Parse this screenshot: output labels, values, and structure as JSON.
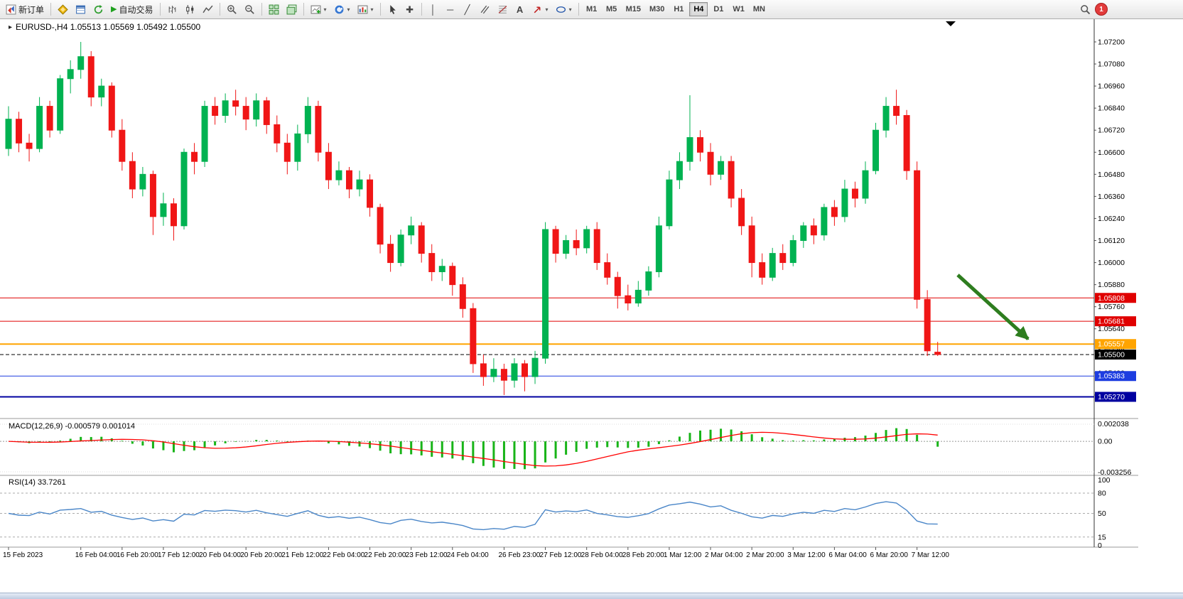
{
  "icons": {
    "play": "▶",
    "dropdown": "▾",
    "crosshair": "✚",
    "vertical_line": "│",
    "horizontal_line": "─",
    "trendline": "╱",
    "text_tool": "A",
    "one_click_marker": "▸"
  },
  "toolbar": {
    "new_order_label": "新订单",
    "autotrading_label": "自动交易",
    "timeframes": [
      "M1",
      "M5",
      "M15",
      "M30",
      "H1",
      "H4",
      "D1",
      "W1",
      "MN"
    ],
    "active_timeframe": "H4",
    "notification_count": "1"
  },
  "chart": {
    "header": "EURUSD-,H4  1.05513 1.05569 1.05492 1.05500",
    "y_axis_labels": [
      "1.07200",
      "1.07080",
      "1.06960",
      "1.06840",
      "1.06720",
      "1.06600",
      "1.06480",
      "1.06360",
      "1.06240",
      "1.06120",
      "1.06000",
      "1.05880",
      "1.05760",
      "1.05640",
      "1.05520",
      "1.05400",
      "1.05280"
    ],
    "h_lines": [
      {
        "label": "1.05808",
        "price": 1.05808,
        "color": "#e00000",
        "width": 1,
        "dash": false
      },
      {
        "label": "1.05681",
        "price": 1.05681,
        "color": "#e00000",
        "width": 1,
        "dash": false
      },
      {
        "label": "1.05557",
        "price": 1.05557,
        "color": "#ffa400",
        "width": 2,
        "dash": false
      },
      {
        "label": "1.05500",
        "price": 1.055,
        "color": "#000000",
        "width": 1,
        "dash": true
      },
      {
        "label": "1.05383",
        "price": 1.05383,
        "color": "#1d3de0",
        "width": 1,
        "dash": false
      },
      {
        "label": "1.05270",
        "price": 1.0527,
        "color": "#0000a0",
        "width": 2,
        "dash": false
      }
    ],
    "arrow_color": "#2e7d1f",
    "colors": {
      "bull": "#00b251",
      "bear": "#f01616",
      "macd_bar": "#18b418",
      "macd_signal": "#ff0000",
      "rsi_line": "#4a86c8"
    }
  },
  "macd": {
    "label": "MACD(12,26,9) -0.000579 0.001014",
    "axis_labels": [
      "0.002038",
      "0.00",
      "-0.003256"
    ]
  },
  "rsi": {
    "label": "RSI(14) 33.7261",
    "axis_labels": [
      "100",
      "80",
      "50",
      "15",
      "0"
    ],
    "levels": [
      80,
      50,
      15
    ]
  },
  "chart_data": {
    "type": "candlestick",
    "symbol": "EURUSD-",
    "period": "H4",
    "current_bar": {
      "open": 1.05513,
      "high": 1.05569,
      "low": 1.05492,
      "close": 1.055
    },
    "y_range_labels": {
      "top": "1.07200",
      "bottom": "1.05280",
      "step": 0.0012
    },
    "candles": [
      [
        1.0662,
        1.0685,
        1.0658,
        1.0678
      ],
      [
        1.0678,
        1.0682,
        1.066,
        1.0665
      ],
      [
        1.0665,
        1.067,
        1.0655,
        1.0662
      ],
      [
        1.0662,
        1.069,
        1.066,
        1.0685
      ],
      [
        1.0685,
        1.0688,
        1.0668,
        1.0672
      ],
      [
        1.0672,
        1.0702,
        1.067,
        1.07
      ],
      [
        1.07,
        1.071,
        1.0692,
        1.0705
      ],
      [
        1.0705,
        1.072,
        1.07,
        1.0712
      ],
      [
        1.0712,
        1.0715,
        1.0685,
        1.069
      ],
      [
        1.069,
        1.07,
        1.0685,
        1.0696
      ],
      [
        1.0696,
        1.0698,
        1.0668,
        1.0672
      ],
      [
        1.0672,
        1.0678,
        1.065,
        1.0655
      ],
      [
        1.0655,
        1.066,
        1.0635,
        1.064
      ],
      [
        1.064,
        1.0652,
        1.0636,
        1.0648
      ],
      [
        1.0648,
        1.065,
        1.0615,
        1.0625
      ],
      [
        1.0625,
        1.0638,
        1.062,
        1.0632
      ],
      [
        1.0632,
        1.0635,
        1.0612,
        1.062
      ],
      [
        1.062,
        1.0662,
        1.0618,
        1.066
      ],
      [
        1.066,
        1.0665,
        1.0648,
        1.0655
      ],
      [
        1.0655,
        1.0688,
        1.0652,
        1.0685
      ],
      [
        1.0685,
        1.069,
        1.0675,
        1.068
      ],
      [
        1.068,
        1.0692,
        1.0676,
        1.0688
      ],
      [
        1.0688,
        1.0694,
        1.068,
        1.0685
      ],
      [
        1.0685,
        1.069,
        1.0672,
        1.0678
      ],
      [
        1.0678,
        1.0692,
        1.0674,
        1.0688
      ],
      [
        1.0688,
        1.069,
        1.067,
        1.0675
      ],
      [
        1.0675,
        1.068,
        1.066,
        1.0665
      ],
      [
        1.0665,
        1.067,
        1.0648,
        1.0655
      ],
      [
        1.0655,
        1.0675,
        1.065,
        1.067
      ],
      [
        1.067,
        1.069,
        1.0665,
        1.0685
      ],
      [
        1.0685,
        1.0688,
        1.0655,
        1.066
      ],
      [
        1.066,
        1.0665,
        1.064,
        1.0645
      ],
      [
        1.0645,
        1.0655,
        1.0642,
        1.065
      ],
      [
        1.065,
        1.0652,
        1.0635,
        1.064
      ],
      [
        1.064,
        1.065,
        1.0636,
        1.0645
      ],
      [
        1.0645,
        1.0648,
        1.0625,
        1.063
      ],
      [
        1.063,
        1.0632,
        1.0605,
        1.061
      ],
      [
        1.061,
        1.0615,
        1.0595,
        1.06
      ],
      [
        1.06,
        1.0618,
        1.0598,
        1.0615
      ],
      [
        1.0615,
        1.0625,
        1.061,
        1.062
      ],
      [
        1.062,
        1.0622,
        1.06,
        1.0605
      ],
      [
        1.0605,
        1.061,
        1.059,
        1.0595
      ],
      [
        1.0595,
        1.0602,
        1.059,
        1.0598
      ],
      [
        1.0598,
        1.06,
        1.0582,
        1.0588
      ],
      [
        1.0588,
        1.0592,
        1.057,
        1.0575
      ],
      [
        1.0575,
        1.0578,
        1.054,
        1.0545
      ],
      [
        1.0545,
        1.055,
        1.0533,
        1.0538
      ],
      [
        1.0538,
        1.0548,
        1.0535,
        1.0542
      ],
      [
        1.0542,
        1.0545,
        1.0528,
        1.0536
      ],
      [
        1.0536,
        1.0548,
        1.0532,
        1.0545
      ],
      [
        1.0545,
        1.0547,
        1.053,
        1.0538
      ],
      [
        1.0538,
        1.0552,
        1.0534,
        1.0548
      ],
      [
        1.0548,
        1.0622,
        1.0545,
        1.0618
      ],
      [
        1.0618,
        1.062,
        1.06,
        1.0605
      ],
      [
        1.0605,
        1.0615,
        1.0602,
        1.0612
      ],
      [
        1.0612,
        1.0618,
        1.0604,
        1.0608
      ],
      [
        1.0608,
        1.062,
        1.0605,
        1.0618
      ],
      [
        1.0618,
        1.0622,
        1.0596,
        1.06
      ],
      [
        1.06,
        1.0605,
        1.0588,
        1.0592
      ],
      [
        1.0592,
        1.0595,
        1.0575,
        1.0582
      ],
      [
        1.0582,
        1.0588,
        1.0574,
        1.0578
      ],
      [
        1.0578,
        1.059,
        1.0576,
        1.0585
      ],
      [
        1.0585,
        1.0598,
        1.0582,
        1.0595
      ],
      [
        1.0595,
        1.0625,
        1.0592,
        1.062
      ],
      [
        1.062,
        1.065,
        1.0618,
        1.0645
      ],
      [
        1.0645,
        1.066,
        1.064,
        1.0655
      ],
      [
        1.0655,
        1.0691,
        1.065,
        1.0668
      ],
      [
        1.0668,
        1.0672,
        1.0655,
        1.066
      ],
      [
        1.066,
        1.0665,
        1.0642,
        1.0648
      ],
      [
        1.0648,
        1.0658,
        1.0645,
        1.0655
      ],
      [
        1.0655,
        1.0658,
        1.063,
        1.0635
      ],
      [
        1.0635,
        1.064,
        1.0615,
        1.062
      ],
      [
        1.062,
        1.0625,
        1.0592,
        1.06
      ],
      [
        1.06,
        1.0605,
        1.0588,
        1.0592
      ],
      [
        1.0592,
        1.0608,
        1.059,
        1.0605
      ],
      [
        1.0605,
        1.061,
        1.0596,
        1.06
      ],
      [
        1.06,
        1.0615,
        1.0598,
        1.0612
      ],
      [
        1.0612,
        1.0622,
        1.0608,
        1.062
      ],
      [
        1.062,
        1.0624,
        1.061,
        1.0615
      ],
      [
        1.0615,
        1.0632,
        1.0612,
        1.063
      ],
      [
        1.063,
        1.0634,
        1.062,
        1.0625
      ],
      [
        1.0625,
        1.0645,
        1.0622,
        1.064
      ],
      [
        1.064,
        1.0644,
        1.063,
        1.0635
      ],
      [
        1.0635,
        1.0655,
        1.0632,
        1.065
      ],
      [
        1.065,
        1.0676,
        1.0648,
        1.0672
      ],
      [
        1.0672,
        1.069,
        1.0668,
        1.0685
      ],
      [
        1.0685,
        1.0694,
        1.0675,
        1.068
      ],
      [
        1.068,
        1.0683,
        1.0645,
        1.065
      ],
      [
        1.065,
        1.0655,
        1.0575,
        1.058
      ],
      [
        1.058,
        1.0585,
        1.05492,
        1.0552
      ],
      [
        1.05513,
        1.05569,
        1.05492,
        1.055
      ]
    ],
    "x_labels": [
      [
        0,
        "15 Feb 2023"
      ],
      [
        7,
        "16 Feb 04:00"
      ],
      [
        11,
        "16 Feb 20:00"
      ],
      [
        15,
        "17 Feb 12:00"
      ],
      [
        19,
        "20 Feb 04:00"
      ],
      [
        23,
        "20 Feb 20:00"
      ],
      [
        27,
        "21 Feb 12:00"
      ],
      [
        31,
        "22 Feb 04:00"
      ],
      [
        35,
        "22 Feb 20:00"
      ],
      [
        39,
        "23 Feb 12:00"
      ],
      [
        43,
        "24 Feb 04:00"
      ],
      [
        48,
        "26 Feb 23:00"
      ],
      [
        52,
        "27 Feb 12:00"
      ],
      [
        56,
        "28 Feb 04:00"
      ],
      [
        60,
        "28 Feb 20:00"
      ],
      [
        64,
        "1 Mar 12:00"
      ],
      [
        68,
        "2 Mar 04:00"
      ],
      [
        72,
        "2 Mar 20:00"
      ],
      [
        76,
        "3 Mar 12:00"
      ],
      [
        80,
        "6 Mar 04:00"
      ],
      [
        84,
        "6 Mar 20:00"
      ],
      [
        88,
        "7 Mar 12:00"
      ]
    ],
    "indicators": [
      {
        "type": "MACD",
        "params": [
          12,
          26,
          9
        ],
        "values": [
          -0.000579,
          0.001014
        ]
      },
      {
        "type": "RSI",
        "params": [
          14
        ],
        "value": 33.7261
      }
    ]
  }
}
